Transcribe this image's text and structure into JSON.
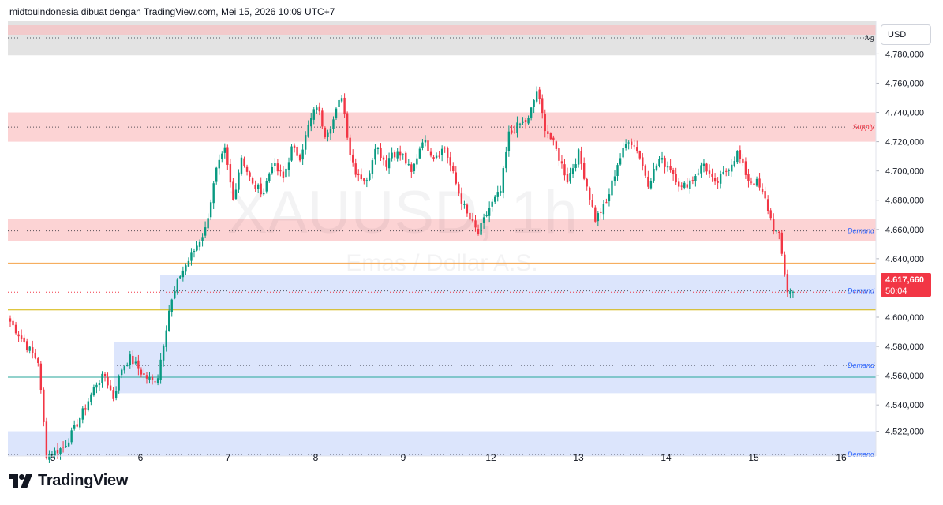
{
  "header": {
    "title": "midtouindonesia dibuat dengan TradingView.com, Mei 15, 2026 10:09 UTC+7"
  },
  "currency": "USD",
  "brand": {
    "name": "TradingView",
    "icon": "tradingview-logo-icon"
  },
  "watermark": {
    "symbol": "XAUUSD, 1h",
    "description": "Emas / Dollar A.S."
  },
  "colors": {
    "up": "#089981",
    "down": "#f23645",
    "supply_zone": "#fccbcd",
    "demand_zone": "#d6e0fb",
    "fvg_zone": "#e0e0e0"
  },
  "chart_data": {
    "type": "candlestick",
    "x_ticks": [
      "5",
      "6",
      "7",
      "8",
      "9",
      "12",
      "13",
      "14",
      "15",
      "16"
    ],
    "y_ticks": [
      4522,
      4540,
      4560,
      4580,
      4600,
      4640,
      4660,
      4680,
      4700,
      4720,
      4740,
      4760,
      4780
    ],
    "y_tick_labels": [
      "4.522,000",
      "4.540,000",
      "4.560,000",
      "4.580,000",
      "4.600,000",
      "4.640,000",
      "4.660,000",
      "4.680,000",
      "4.700,000",
      "4.720,000",
      "4.740,000",
      "4.760,000",
      "4.780,000"
    ],
    "ylim": [
      4505,
      4800
    ],
    "last_price": {
      "value": 4617.66,
      "label": "4.617,660",
      "countdown": "50:04"
    },
    "zones": [
      {
        "kind": "fvg",
        "label": "fvg",
        "low": 4779,
        "high": 4806,
        "mid": 4791
      },
      {
        "kind": "supply",
        "label": "Supply",
        "low": 4720,
        "high": 4740,
        "mid": 4730
      },
      {
        "kind": "demand",
        "label": "Demand",
        "low": 4652,
        "high": 4667,
        "mid": 4659
      },
      {
        "kind": "demand",
        "label": "Demand",
        "low": 4605,
        "high": 4629,
        "mid": 4618
      },
      {
        "kind": "demand",
        "label": "Demand",
        "low": 4548,
        "high": 4583,
        "mid": 4567
      },
      {
        "kind": "demand",
        "label": "Demand",
        "low": 4504,
        "high": 4522,
        "mid": 4505
      }
    ],
    "horizontal_lines": [
      {
        "value": 4637,
        "color": "#f5a24a"
      },
      {
        "value": 4605,
        "color": "#d4b300"
      },
      {
        "value": 4559,
        "color": "#26a69a"
      }
    ],
    "waypoints": [
      [
        0,
        4597
      ],
      [
        6,
        4580
      ],
      [
        10,
        4570
      ],
      [
        13,
        4506
      ],
      [
        16,
        4508
      ],
      [
        19,
        4511
      ],
      [
        22,
        4520
      ],
      [
        26,
        4535
      ],
      [
        31,
        4555
      ],
      [
        34,
        4560
      ],
      [
        37,
        4545
      ],
      [
        40,
        4565
      ],
      [
        43,
        4572
      ],
      [
        48,
        4560
      ],
      [
        51,
        4556
      ],
      [
        53,
        4560
      ],
      [
        57,
        4605
      ],
      [
        61,
        4629
      ],
      [
        65,
        4642
      ],
      [
        70,
        4660
      ],
      [
        74,
        4700
      ],
      [
        77,
        4714
      ],
      [
        80,
        4680
      ],
      [
        83,
        4710
      ],
      [
        87,
        4690
      ],
      [
        91,
        4686
      ],
      [
        94,
        4705
      ],
      [
        98,
        4695
      ],
      [
        101,
        4715
      ],
      [
        104,
        4710
      ],
      [
        107,
        4730
      ],
      [
        110,
        4745
      ],
      [
        113,
        4726
      ],
      [
        116,
        4735
      ],
      [
        119,
        4752
      ],
      [
        122,
        4712
      ],
      [
        124,
        4700
      ],
      [
        128,
        4692
      ],
      [
        131,
        4718
      ],
      [
        135,
        4705
      ],
      [
        137,
        4713
      ],
      [
        141,
        4710
      ],
      [
        144,
        4698
      ],
      [
        148,
        4722
      ],
      [
        152,
        4710
      ],
      [
        156,
        4716
      ],
      [
        161,
        4685
      ],
      [
        164,
        4670
      ],
      [
        168,
        4657
      ],
      [
        172,
        4675
      ],
      [
        176,
        4686
      ],
      [
        179,
        4725
      ],
      [
        183,
        4732
      ],
      [
        186,
        4735
      ],
      [
        189,
        4755
      ],
      [
        192,
        4730
      ],
      [
        196,
        4714
      ],
      [
        200,
        4694
      ],
      [
        204,
        4712
      ],
      [
        207,
        4690
      ],
      [
        210,
        4667
      ],
      [
        214,
        4678
      ],
      [
        218,
        4705
      ],
      [
        222,
        4722
      ],
      [
        225,
        4715
      ],
      [
        229,
        4692
      ],
      [
        233,
        4708
      ],
      [
        237,
        4702
      ],
      [
        241,
        4688
      ],
      [
        245,
        4695
      ],
      [
        249,
        4705
      ],
      [
        253,
        4690
      ],
      [
        257,
        4700
      ],
      [
        261,
        4712
      ],
      [
        265,
        4694
      ],
      [
        268,
        4692
      ],
      [
        271,
        4680
      ],
      [
        274,
        4661
      ],
      [
        276,
        4655
      ],
      [
        279,
        4618
      ],
      [
        281,
        4617
      ]
    ]
  }
}
